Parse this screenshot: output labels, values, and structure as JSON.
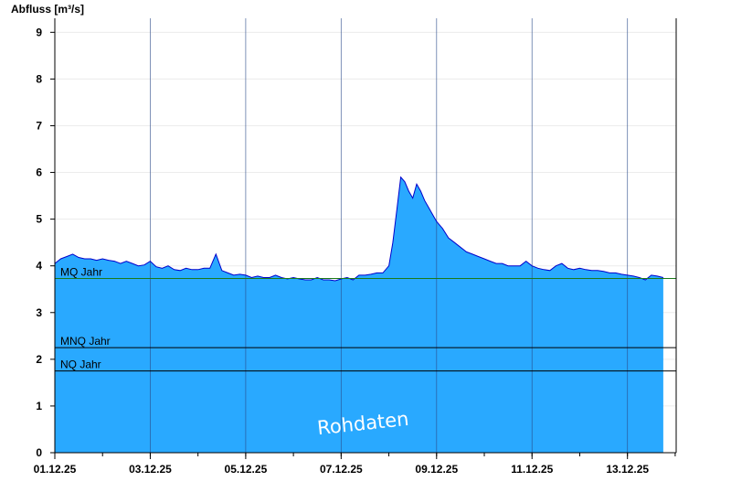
{
  "chart_data": {
    "type": "area",
    "ylabel": "Abfluss [m³/s]",
    "xlabel": "",
    "ylim": [
      0,
      9.3
    ],
    "yticks": [
      0,
      1,
      2,
      3,
      4,
      5,
      6,
      7,
      8,
      9
    ],
    "xlim": [
      "2025-12-01",
      "2025-12-14T00:30"
    ],
    "x_tick_labels": [
      "01.12.25",
      "03.12.25",
      "05.12.25",
      "07.12.25",
      "09.12.25",
      "11.12.25",
      "13.12.25"
    ],
    "x_tick_dates": [
      "2025-12-01",
      "2025-12-03",
      "2025-12-05",
      "2025-12-07",
      "2025-12-09",
      "2025-12-11",
      "2025-12-13"
    ],
    "grid": true,
    "fill_color": "#29a9ff",
    "line_color": "#0000cc",
    "reference_lines": [
      {
        "label": "MQ Jahr",
        "value": 3.73,
        "color": "#1a7a1a"
      },
      {
        "label": "MNQ Jahr",
        "value": 2.25,
        "color": "#000000"
      },
      {
        "label": "NQ Jahr",
        "value": 1.75,
        "color": "#000000"
      }
    ],
    "watermark": "Rohdaten",
    "series": [
      {
        "x": [
          "2025-12-01 00:00",
          "2025-12-01 03:00",
          "2025-12-01 06:00",
          "2025-12-01 09:00",
          "2025-12-01 12:00",
          "2025-12-01 15:00",
          "2025-12-01 18:00",
          "2025-12-01 21:00",
          "2025-12-02 00:00",
          "2025-12-02 03:00",
          "2025-12-02 06:00",
          "2025-12-02 09:00",
          "2025-12-02 12:00",
          "2025-12-02 15:00",
          "2025-12-02 18:00",
          "2025-12-02 21:00",
          "2025-12-03 00:00",
          "2025-12-03 03:00",
          "2025-12-03 06:00",
          "2025-12-03 09:00",
          "2025-12-03 12:00",
          "2025-12-03 15:00",
          "2025-12-03 18:00",
          "2025-12-03 21:00",
          "2025-12-04 00:00",
          "2025-12-04 03:00",
          "2025-12-04 06:00",
          "2025-12-04 09:00",
          "2025-12-04 12:00",
          "2025-12-04 15:00",
          "2025-12-04 18:00",
          "2025-12-04 21:00",
          "2025-12-05 00:00",
          "2025-12-05 03:00",
          "2025-12-05 06:00",
          "2025-12-05 09:00",
          "2025-12-05 12:00",
          "2025-12-05 15:00",
          "2025-12-05 18:00",
          "2025-12-05 21:00",
          "2025-12-06 00:00",
          "2025-12-06 03:00",
          "2025-12-06 06:00",
          "2025-12-06 09:00",
          "2025-12-06 12:00",
          "2025-12-06 15:00",
          "2025-12-06 18:00",
          "2025-12-06 21:00",
          "2025-12-07 00:00",
          "2025-12-07 03:00",
          "2025-12-07 06:00",
          "2025-12-07 09:00",
          "2025-12-07 12:00",
          "2025-12-07 15:00",
          "2025-12-07 18:00",
          "2025-12-07 21:00",
          "2025-12-08 00:00",
          "2025-12-08 02:00",
          "2025-12-08 04:00",
          "2025-12-08 06:00",
          "2025-12-08 08:00",
          "2025-12-08 10:00",
          "2025-12-08 12:00",
          "2025-12-08 14:00",
          "2025-12-08 16:00",
          "2025-12-08 18:00",
          "2025-12-08 20:00",
          "2025-12-08 22:00",
          "2025-12-09 00:00",
          "2025-12-09 03:00",
          "2025-12-09 06:00",
          "2025-12-09 09:00",
          "2025-12-09 12:00",
          "2025-12-09 15:00",
          "2025-12-09 18:00",
          "2025-12-09 21:00",
          "2025-12-10 00:00",
          "2025-12-10 03:00",
          "2025-12-10 06:00",
          "2025-12-10 09:00",
          "2025-12-10 12:00",
          "2025-12-10 15:00",
          "2025-12-10 18:00",
          "2025-12-10 21:00",
          "2025-12-11 00:00",
          "2025-12-11 03:00",
          "2025-12-11 06:00",
          "2025-12-11 09:00",
          "2025-12-11 12:00",
          "2025-12-11 15:00",
          "2025-12-11 18:00",
          "2025-12-11 21:00",
          "2025-12-12 00:00",
          "2025-12-12 03:00",
          "2025-12-12 06:00",
          "2025-12-12 09:00",
          "2025-12-12 12:00",
          "2025-12-12 15:00",
          "2025-12-12 18:00",
          "2025-12-12 21:00",
          "2025-12-13 00:00",
          "2025-12-13 03:00",
          "2025-12-13 06:00",
          "2025-12-13 09:00",
          "2025-12-13 12:00",
          "2025-12-13 15:00",
          "2025-12-13 18:00"
        ],
        "values": [
          4.05,
          4.15,
          4.2,
          4.25,
          4.18,
          4.15,
          4.15,
          4.12,
          4.15,
          4.12,
          4.1,
          4.05,
          4.1,
          4.05,
          4.0,
          4.02,
          4.1,
          3.98,
          3.95,
          4.0,
          3.92,
          3.9,
          3.95,
          3.92,
          3.92,
          3.95,
          3.95,
          4.25,
          3.9,
          3.85,
          3.8,
          3.82,
          3.8,
          3.75,
          3.78,
          3.75,
          3.75,
          3.8,
          3.75,
          3.72,
          3.75,
          3.72,
          3.7,
          3.7,
          3.75,
          3.7,
          3.7,
          3.68,
          3.72,
          3.75,
          3.7,
          3.8,
          3.8,
          3.82,
          3.85,
          3.85,
          4.0,
          4.5,
          5.2,
          5.9,
          5.8,
          5.6,
          5.45,
          5.75,
          5.6,
          5.4,
          5.25,
          5.1,
          4.95,
          4.8,
          4.6,
          4.5,
          4.4,
          4.3,
          4.25,
          4.2,
          4.15,
          4.1,
          4.05,
          4.05,
          4.0,
          4.0,
          4.0,
          4.1,
          4.0,
          3.95,
          3.92,
          3.9,
          4.0,
          4.05,
          3.95,
          3.92,
          3.95,
          3.92,
          3.9,
          3.9,
          3.88,
          3.85,
          3.85,
          3.82,
          3.8,
          3.78,
          3.75,
          3.7,
          3.8,
          3.78,
          3.75
        ]
      }
    ]
  }
}
